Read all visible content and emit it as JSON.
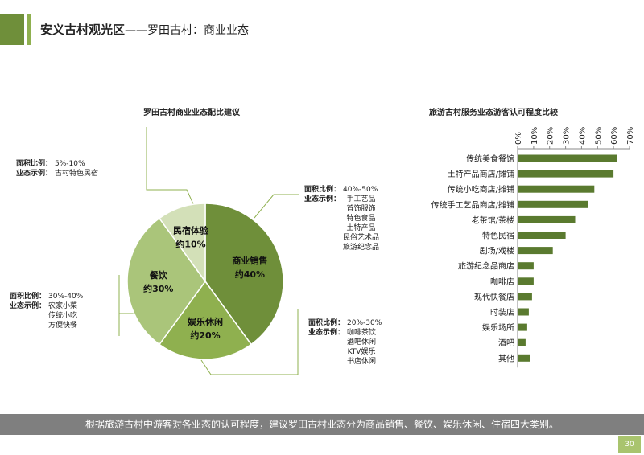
{
  "header": {
    "title_bold": "安义古村观光区",
    "title_rest": "——罗田古村：商业业态"
  },
  "pie_chart": {
    "title": "罗田古村商业业态配比建议",
    "annotations": [
      {
        "area_label": "面积比例：",
        "area": "5%-10%",
        "example_label": "业态示例：",
        "examples": [
          "古村特色民宿"
        ]
      },
      {
        "area_label": "面积比例：",
        "area": "40%-50%",
        "example_label": "业态示例：",
        "examples": [
          "手工艺品",
          "首饰服饰",
          "特色食品",
          "土特产品",
          "民俗艺术品",
          "旅游纪念品"
        ]
      },
      {
        "area_label": "面积比例：",
        "area": "30%-40%",
        "example_label": "业态示例：",
        "examples": [
          "农家小菜",
          "传统小吃",
          "方便快餐"
        ]
      },
      {
        "area_label": "面积比例：",
        "area": "20%-30%",
        "example_label": "业态示例：",
        "examples": [
          "咖啡茶饮",
          "酒吧休闲",
          "KTV娱乐",
          "书店休闲"
        ]
      }
    ]
  },
  "bar_chart": {
    "title": "旅游古村服务业态游客认可程度比较"
  },
  "chart_data": [
    {
      "type": "pie",
      "title": "罗田古村商业业态配比建议",
      "labels": [
        "商业销售",
        "娱乐休闲",
        "餐饮",
        "民宿体验"
      ],
      "values": [
        40,
        20,
        30,
        10
      ],
      "value_labels": [
        "约40%",
        "约20%",
        "约30%",
        "约10%"
      ],
      "colors": [
        "#6f8f3a",
        "#8fb04f",
        "#aac57a",
        "#d3e0b8"
      ]
    },
    {
      "type": "bar",
      "orientation": "horizontal",
      "title": "旅游古村服务业态游客认可程度比较",
      "categories": [
        "传统美食餐馆",
        "土特产品商店/摊铺",
        "传统小吃商店/摊铺",
        "传统手工艺品商店/摊铺",
        "老茶馆/茶楼",
        "特色民宿",
        "剧场/戏楼",
        "旅游纪念品商店",
        "咖啡店",
        "现代快餐店",
        "时装店",
        "娱乐场所",
        "酒吧",
        "其他"
      ],
      "values": [
        62,
        60,
        48,
        44,
        36,
        30,
        22,
        10,
        10,
        9,
        7,
        6,
        5,
        8
      ],
      "xlim": [
        0,
        70
      ],
      "ticks": [
        0,
        10,
        20,
        30,
        40,
        50,
        60,
        70
      ],
      "tick_labels": [
        "0%",
        "10%",
        "20%",
        "30%",
        "40%",
        "50%",
        "60%",
        "70%"
      ],
      "axis_position": "top",
      "color": "#5a7a2f"
    }
  ],
  "footer": {
    "text": "根据旅游古村中游客对各业态的认可程度，建议罗田古村业态分为商品销售、餐饮、娱乐休闲、住宿四大类别。",
    "page": "30"
  }
}
